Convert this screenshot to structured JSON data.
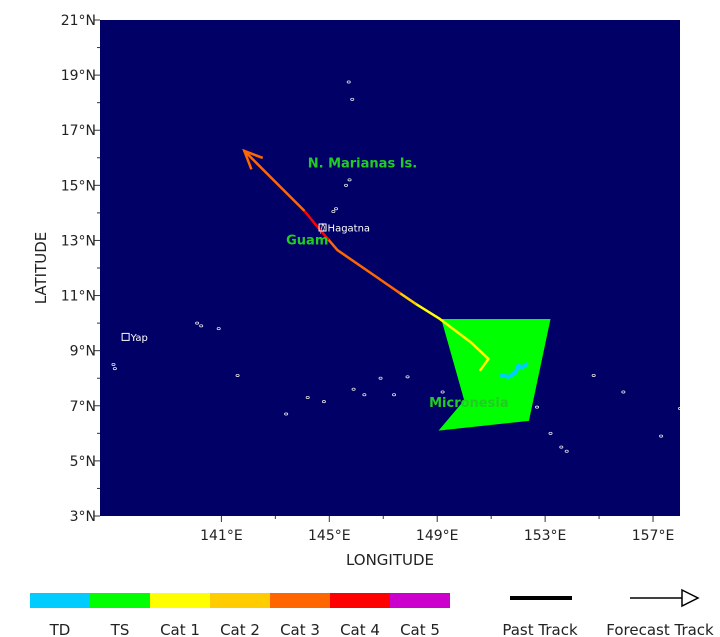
{
  "colors": {
    "ocean": "#000066",
    "land_outline": "#e8e8e8",
    "region_label": "#22cc22",
    "cone": "#00ff00",
    "tick": "#333333"
  },
  "axes": {
    "xlabel": "LONGITUDE",
    "ylabel": "LATITUDE",
    "lon_range": [
      136.5,
      158.0
    ],
    "lat_range": [
      3.0,
      21.0
    ],
    "x_ticks": [
      {
        "value": 141,
        "label": "141°E"
      },
      {
        "value": 145,
        "label": "145°E"
      },
      {
        "value": 149,
        "label": "149°E"
      },
      {
        "value": 153,
        "label": "153°E"
      },
      {
        "value": 157,
        "label": "157°E"
      }
    ],
    "y_ticks": [
      {
        "value": 3,
        "label": "3°N"
      },
      {
        "value": 5,
        "label": "5°N"
      },
      {
        "value": 7,
        "label": "7°N"
      },
      {
        "value": 9,
        "label": "9°N"
      },
      {
        "value": 11,
        "label": "11°N"
      },
      {
        "value": 13,
        "label": "13°N"
      },
      {
        "value": 15,
        "label": "15°N"
      },
      {
        "value": 17,
        "label": "17°N"
      },
      {
        "value": 19,
        "label": "19°N"
      },
      {
        "value": 21,
        "label": "21°N"
      }
    ]
  },
  "regions": [
    {
      "id": "marianas",
      "label": "N. Marianas Is.",
      "lon": 144.2,
      "lat": 15.65
    },
    {
      "id": "guam",
      "label": "Guam",
      "lon": 143.4,
      "lat": 12.85
    },
    {
      "id": "micronesia",
      "label": "Micronesia",
      "lon": 148.7,
      "lat": 6.95
    }
  ],
  "cities": [
    {
      "id": "hagatna",
      "label": "Hagatna",
      "lon": 144.75,
      "lat": 13.47
    },
    {
      "id": "yap",
      "label": "Yap",
      "lon": 137.45,
      "lat": 9.5
    }
  ],
  "islands": [
    {
      "lon": 145.72,
      "lat": 18.75
    },
    {
      "lon": 145.85,
      "lat": 18.12
    },
    {
      "lon": 145.75,
      "lat": 15.2
    },
    {
      "lon": 145.62,
      "lat": 15.0
    },
    {
      "lon": 145.25,
      "lat": 14.15
    },
    {
      "lon": 145.15,
      "lat": 14.05
    },
    {
      "lon": 140.1,
      "lat": 10.0
    },
    {
      "lon": 140.25,
      "lat": 9.9
    },
    {
      "lon": 140.9,
      "lat": 9.8
    },
    {
      "lon": 137.0,
      "lat": 8.5
    },
    {
      "lon": 137.05,
      "lat": 8.35
    },
    {
      "lon": 141.6,
      "lat": 8.1
    },
    {
      "lon": 143.4,
      "lat": 6.7
    },
    {
      "lon": 144.2,
      "lat": 7.3
    },
    {
      "lon": 144.8,
      "lat": 7.15
    },
    {
      "lon": 145.9,
      "lat": 7.6
    },
    {
      "lon": 146.3,
      "lat": 7.4
    },
    {
      "lon": 146.9,
      "lat": 8.0
    },
    {
      "lon": 147.4,
      "lat": 7.4
    },
    {
      "lon": 147.9,
      "lat": 8.05
    },
    {
      "lon": 149.2,
      "lat": 7.5
    },
    {
      "lon": 152.7,
      "lat": 6.95
    },
    {
      "lon": 153.2,
      "lat": 6.0
    },
    {
      "lon": 153.6,
      "lat": 5.5
    },
    {
      "lon": 153.8,
      "lat": 5.35
    },
    {
      "lon": 154.8,
      "lat": 8.1
    },
    {
      "lon": 155.9,
      "lat": 7.5
    },
    {
      "lon": 157.3,
      "lat": 5.9
    },
    {
      "lon": 158.0,
      "lat": 6.9
    }
  ],
  "forecast_cone": [
    [
      149.15,
      10.15
    ],
    [
      153.2,
      10.15
    ],
    [
      152.4,
      6.45
    ],
    [
      149.05,
      6.1
    ],
    [
      150.0,
      7.2
    ],
    [
      149.15,
      10.15
    ]
  ],
  "past_track": [
    [
      151.4,
      8.1
    ],
    [
      151.65,
      8.05
    ],
    [
      151.9,
      8.2
    ],
    [
      152.0,
      8.45
    ],
    [
      152.15,
      8.4
    ],
    [
      152.3,
      8.5
    ]
  ],
  "forecast_track": {
    "segments": [
      {
        "category": "Cat 1",
        "points": [
          [
            150.6,
            8.3
          ],
          [
            150.9,
            8.7
          ],
          [
            150.25,
            9.3
          ],
          [
            149.1,
            10.15
          ],
          [
            148.2,
            10.7
          ]
        ]
      },
      {
        "category": "Cat 2",
        "points": [
          [
            148.2,
            10.7
          ],
          [
            147.6,
            11.1
          ]
        ]
      },
      {
        "category": "Cat 3",
        "points": [
          [
            147.6,
            11.1
          ],
          [
            145.3,
            12.65
          ],
          [
            144.95,
            13.05
          ]
        ]
      },
      {
        "category": "Cat 4",
        "points": [
          [
            144.95,
            13.05
          ],
          [
            144.6,
            13.45
          ],
          [
            144.05,
            14.1
          ]
        ]
      },
      {
        "category": "Cat 3",
        "points": [
          [
            144.05,
            14.1
          ],
          [
            141.85,
            16.25
          ]
        ]
      }
    ]
  },
  "legend": {
    "categories": [
      {
        "label": "TD",
        "color": "#00ccff"
      },
      {
        "label": "TS",
        "color": "#00ff00"
      },
      {
        "label": "Cat 1",
        "color": "#ffff00"
      },
      {
        "label": "Cat 2",
        "color": "#ffcc00"
      },
      {
        "label": "Cat 3",
        "color": "#ff6600"
      },
      {
        "label": "Cat 4",
        "color": "#ff0000"
      },
      {
        "label": "Cat 5",
        "color": "#cc00cc"
      }
    ],
    "past_track_label": "Past Track",
    "forecast_track_label": "Forecast Track"
  }
}
